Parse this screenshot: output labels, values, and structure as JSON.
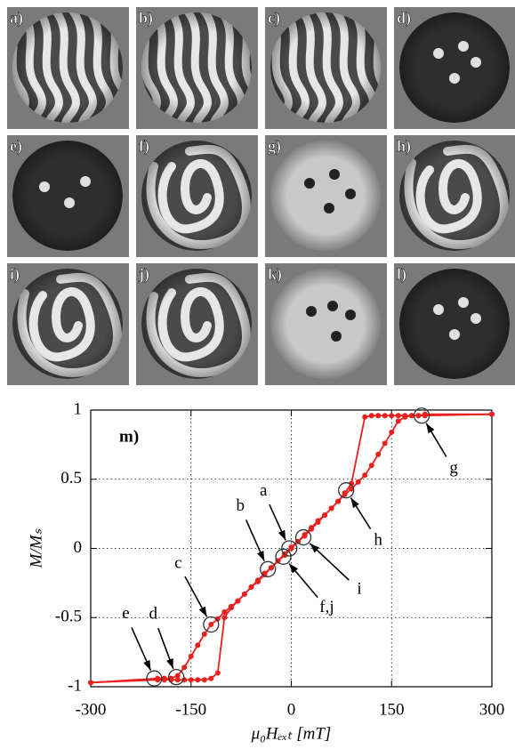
{
  "panels": [
    {
      "label": "a)"
    },
    {
      "label": "b)"
    },
    {
      "label": "c)"
    },
    {
      "label": "d)"
    },
    {
      "label": "e)"
    },
    {
      "label": "f)"
    },
    {
      "label": "g)"
    },
    {
      "label": "h)"
    },
    {
      "label": "i)"
    },
    {
      "label": "j)"
    },
    {
      "label": "k)"
    },
    {
      "label": "l)"
    }
  ],
  "chart_data": {
    "type": "line",
    "annotation": "m)",
    "xlabel": "μ₀Hₑₓₜ [mT]",
    "ylabel": "M/Mₛ",
    "xlim": [
      -300,
      300
    ],
    "xticks": [
      -300,
      -150,
      0,
      150,
      300
    ],
    "ylim": [
      -1,
      1
    ],
    "yticks": [
      -1,
      -0.5,
      0,
      0.5,
      1
    ],
    "grid": true,
    "series": [
      {
        "color": "#e8201e",
        "x": [
          300,
          200,
          190,
          180,
          170,
          160,
          150,
          140,
          130,
          120,
          110,
          90,
          80,
          70,
          60,
          50,
          40,
          30,
          20,
          10,
          0,
          -10,
          -20,
          -30,
          -40,
          -50,
          -60,
          -70,
          -80,
          -90,
          -100,
          -110,
          -120,
          -130,
          -140,
          -150,
          -160,
          -170,
          -180,
          -190,
          -200,
          -300
        ],
        "values": [
          0.97,
          0.97,
          0.96,
          0.96,
          0.96,
          0.96,
          0.96,
          0.96,
          0.96,
          0.96,
          0.95,
          0.47,
          0.4,
          0.34,
          0.29,
          0.24,
          0.19,
          0.14,
          0.09,
          0.05,
          0,
          -0.05,
          -0.09,
          -0.14,
          -0.19,
          -0.24,
          -0.28,
          -0.33,
          -0.38,
          -0.42,
          -0.46,
          -0.51,
          -0.55,
          -0.62,
          -0.7,
          -0.78,
          -0.86,
          -0.92,
          -0.94,
          -0.94,
          -0.94,
          -0.97
        ]
      },
      {
        "color": "#e8201e",
        "x": [
          -300,
          -200,
          -190,
          -180,
          -170,
          -160,
          -150,
          -140,
          -130,
          -120,
          -110,
          -100,
          -90,
          -80,
          -70,
          -60,
          -50,
          -40,
          -30,
          -20,
          -10,
          0,
          10,
          20,
          30,
          40,
          50,
          60,
          70,
          80,
          90,
          100,
          110,
          120,
          130,
          140,
          150,
          160,
          170,
          180,
          190,
          200,
          300
        ],
        "values": [
          -0.97,
          -0.95,
          -0.95,
          -0.95,
          -0.95,
          -0.95,
          -0.95,
          -0.95,
          -0.95,
          -0.94,
          -0.9,
          -0.5,
          -0.43,
          -0.38,
          -0.33,
          -0.28,
          -0.23,
          -0.18,
          -0.14,
          -0.09,
          -0.04,
          0.01,
          0.05,
          0.1,
          0.15,
          0.2,
          0.24,
          0.29,
          0.34,
          0.39,
          0.43,
          0.48,
          0.53,
          0.6,
          0.68,
          0.76,
          0.84,
          0.92,
          0.95,
          0.96,
          0.96,
          0.96,
          0.97
        ]
      }
    ],
    "highlights": [
      {
        "label": "a",
        "x": -3,
        "y": 0
      },
      {
        "label": "b",
        "x": -35,
        "y": -0.15
      },
      {
        "label": "c",
        "x": -120,
        "y": -0.55
      },
      {
        "label": "d",
        "x": -172,
        "y": -0.93
      },
      {
        "label": "e",
        "x": -205,
        "y": -0.94
      },
      {
        "label": "f,j",
        "x": -12,
        "y": -0.06
      },
      {
        "label": "g",
        "x": 195,
        "y": 0.96
      },
      {
        "label": "h",
        "x": 82,
        "y": 0.42
      },
      {
        "label": "i",
        "x": 18,
        "y": 0.08
      }
    ]
  }
}
